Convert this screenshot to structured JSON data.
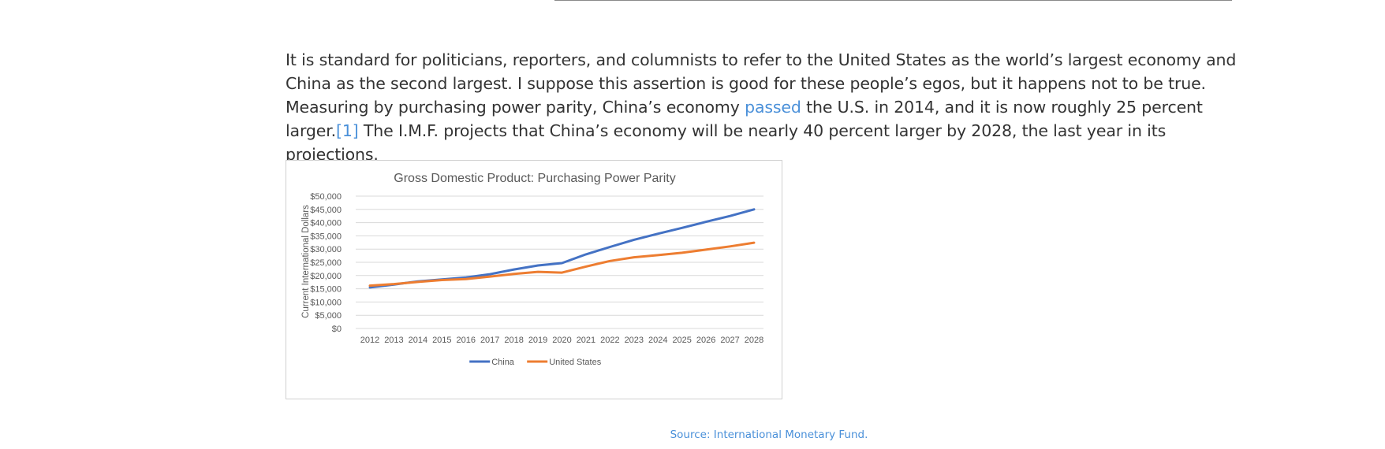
{
  "article": {
    "p1_before_link1": "It is standard for politicians, reporters, and columnists to refer to the United States as the world’s largest economy and China as the second largest. I suppose this assertion is good for these people’s egos, but it happens not to be true. Measuring by purchasing power parity, China’s economy ",
    "link1": "passed",
    "p1_after_link1": " the U.S. in 2014, and it is now roughly 25 percent larger.",
    "footnote": "[1]",
    "p1_end": " The I.M.F. projects that China’s economy will be nearly 40 percent larger by 2028, the last year in its projections."
  },
  "caption": "Source: International Monetary Fund.",
  "colors": {
    "china": "#4472c4",
    "us": "#ed7d31",
    "link": "#4a90d9",
    "grid": "#d9d9d9"
  },
  "chart_data": {
    "type": "line",
    "title": "Gross Domestic Product: Purchasing Power Parity",
    "xlabel": "",
    "ylabel": "Current International Dollars",
    "x": [
      "2012",
      "2013",
      "2014",
      "2015",
      "2016",
      "2017",
      "2018",
      "2019",
      "2020",
      "2021",
      "2022",
      "2023",
      "2024",
      "2025",
      "2026",
      "2027",
      "2028"
    ],
    "ylim": [
      0,
      50000
    ],
    "yticks": [
      "$0",
      "$5,000",
      "$10,000",
      "$15,000",
      "$20,000",
      "$25,000",
      "$30,000",
      "$35,000",
      "$40,000",
      "$45,000",
      "$50,000"
    ],
    "grid": true,
    "legend_position": "bottom",
    "series": [
      {
        "name": "China",
        "color": "#4472c4",
        "values": [
          15500,
          16600,
          17800,
          18500,
          19300,
          20500,
          22300,
          23800,
          24700,
          28000,
          30800,
          33500,
          35800,
          38000,
          40300,
          42500,
          45000
        ]
      },
      {
        "name": "United States",
        "color": "#ed7d31",
        "values": [
          16200,
          16800,
          17600,
          18300,
          18700,
          19600,
          20600,
          21400,
          21100,
          23400,
          25500,
          26900,
          27700,
          28600,
          29800,
          31000,
          32400
        ]
      }
    ]
  }
}
